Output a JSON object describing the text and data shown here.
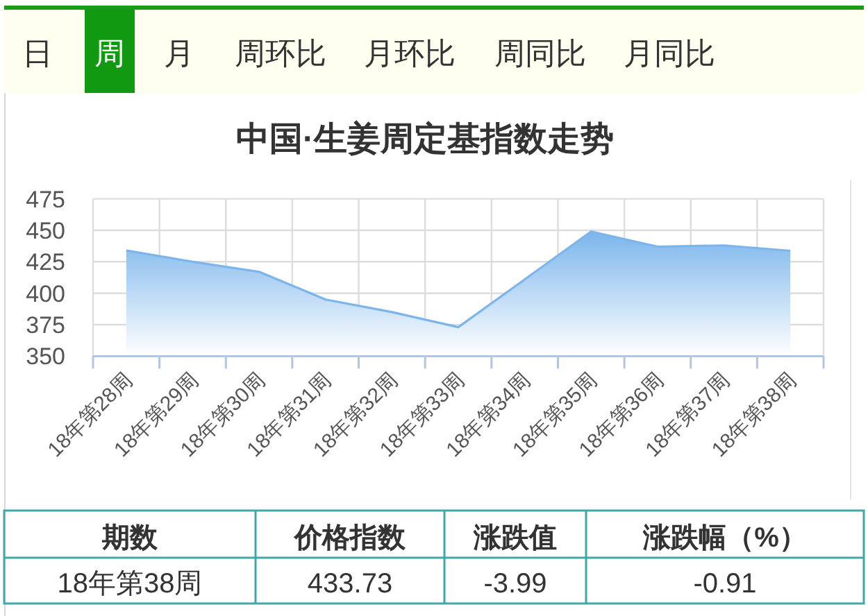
{
  "chart_data": {
    "type": "area",
    "title": "中国·生姜周定基指数走势",
    "categories": [
      "18年第28周",
      "18年第29周",
      "18年第30周",
      "18年第31周",
      "18年第32周",
      "18年第33周",
      "18年第34周",
      "18年第35周",
      "18年第36周",
      "18年第37周",
      "18年第38周"
    ],
    "values": [
      434,
      425,
      417,
      395,
      385,
      373,
      411,
      449,
      437,
      438,
      433.73
    ],
    "color": "#7cb5ec",
    "ylim": [
      350,
      475
    ],
    "yticks": [
      350,
      375,
      400,
      425,
      450,
      475
    ],
    "grid": true,
    "annotations": [
      "日",
      "周",
      "月",
      "周环比",
      "月环比",
      "周同比",
      "月同比",
      "期数",
      "价格指数",
      "涨跌值",
      "涨跌幅（%）",
      "18年第38周",
      "433.73",
      "-3.99",
      "-0.91"
    ]
  }
}
